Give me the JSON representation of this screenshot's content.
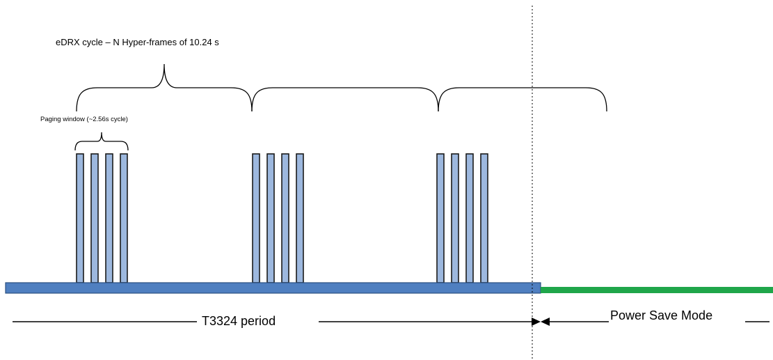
{
  "labels": {
    "edrx_cycle": "eDRX cycle – N Hyper-frames of 10.24 s",
    "paging_window": "Paging window (~2.56s cycle)",
    "t3324_period": "T3324 period",
    "power_save_mode": "Power Save Mode"
  },
  "colors": {
    "paging_bar": "#9db8de",
    "timeline_edrx": "#4f7fc0",
    "timeline_psm": "#1fa64a",
    "text": "#000000"
  }
}
